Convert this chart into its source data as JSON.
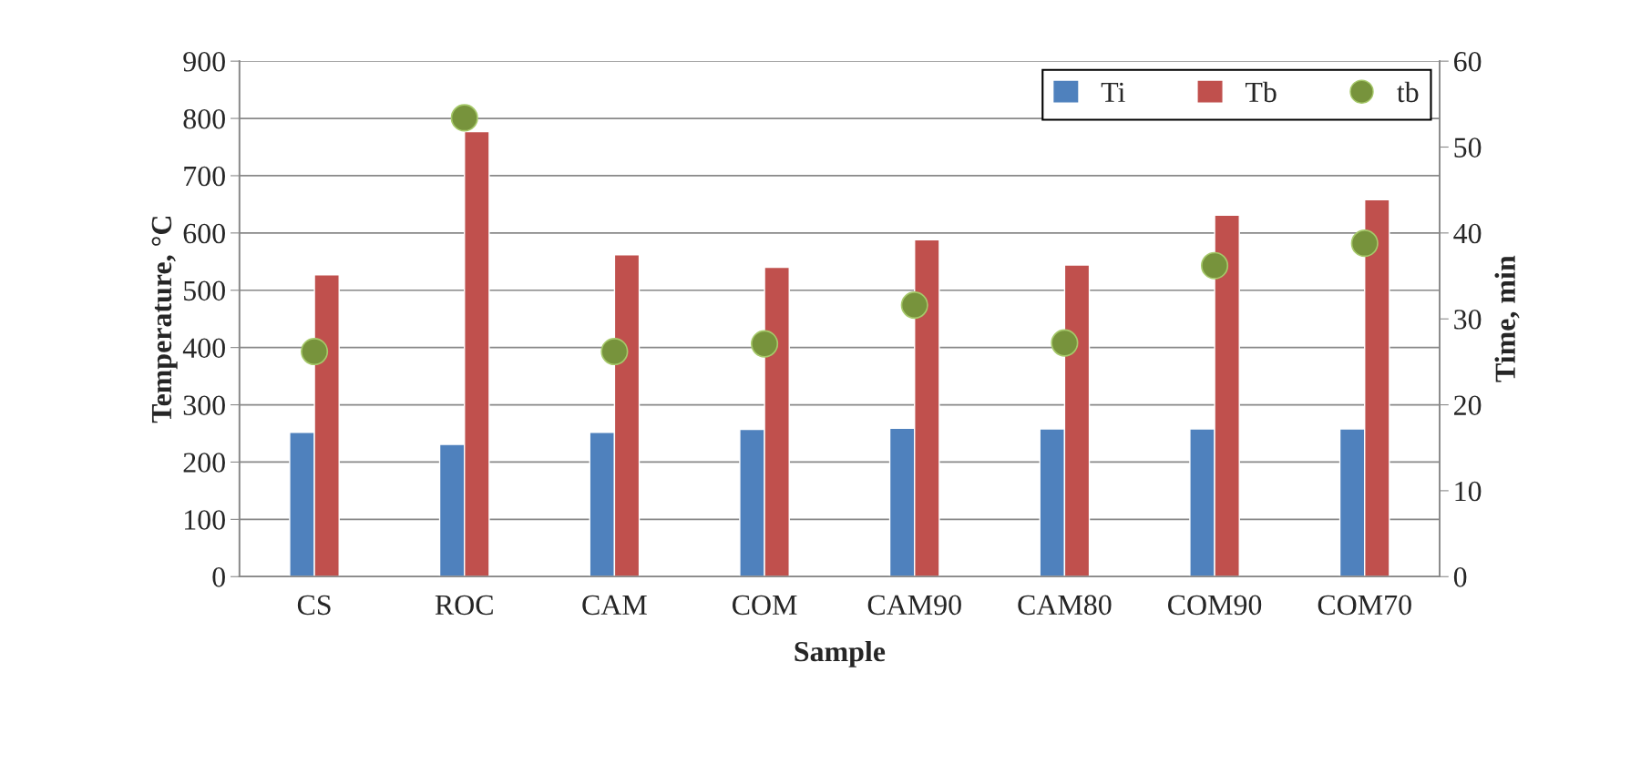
{
  "chart_data": {
    "type": "bar",
    "xlabel": "Sample",
    "ylabel": "Temperature, °C",
    "y2label": "Time, min",
    "categories": [
      "CS",
      "ROC",
      "CAM",
      "COM",
      "CAM90",
      "CAM80",
      "COM90",
      "COM70"
    ],
    "series": [
      {
        "name": "Ti",
        "color": "#4f81bd",
        "values": [
          252,
          231,
          252,
          257,
          259,
          258,
          258,
          258
        ]
      },
      {
        "name": "Tb",
        "color": "#c0504d",
        "values": [
          527,
          777,
          562,
          540,
          588,
          544,
          631,
          658
        ]
      },
      {
        "name": "tb",
        "type": "scatter",
        "axis": "y2",
        "color": "#77933c",
        "marker": "circle",
        "values": [
          26.2,
          53.4,
          26.2,
          27.1,
          31.6,
          27.2,
          36.2,
          38.8
        ]
      }
    ],
    "ylim": [
      0,
      900
    ],
    "yticks": [
      0,
      100,
      200,
      300,
      400,
      500,
      600,
      700,
      800,
      900
    ],
    "y2lim": [
      0,
      60
    ],
    "y2ticks": [
      0,
      10,
      20,
      30,
      40,
      50,
      60
    ],
    "grid": "y",
    "legend": "top right"
  }
}
